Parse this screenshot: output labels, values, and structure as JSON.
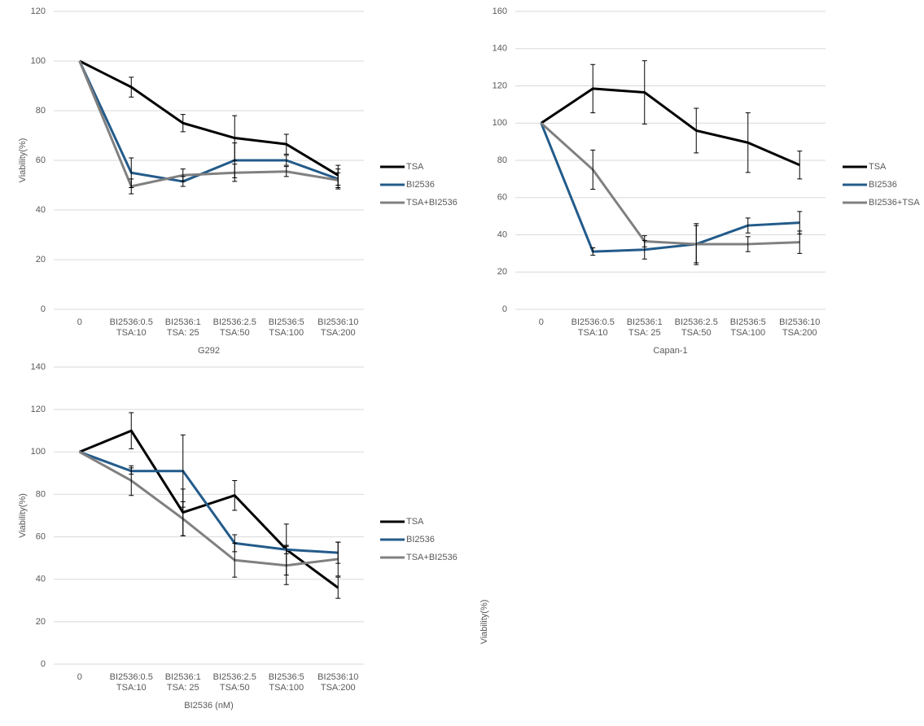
{
  "chart_data": [
    {
      "type": "line",
      "x_label": "G292",
      "y_label": "Viability(%)",
      "grid": true,
      "legend": "right",
      "categories": [
        [
          "0"
        ],
        [
          "BI2536:0.5",
          "TSA:10"
        ],
        [
          "BI2536:1",
          "TSA: 25"
        ],
        [
          "BI2536:2.5",
          "TSA:50"
        ],
        [
          "BI2536:5",
          "TSA:100"
        ],
        [
          "BI2536:10",
          "TSA:200"
        ]
      ],
      "ylim": [
        0,
        120
      ],
      "yticks": [
        0,
        20,
        40,
        60,
        80,
        100,
        120
      ],
      "series": [
        {
          "name": "TSA",
          "color": "#000000",
          "values": [
            100,
            89.5,
            75,
            69,
            66.5,
            54
          ],
          "errors": [
            null,
            4,
            3.5,
            9,
            4,
            4
          ]
        },
        {
          "name": "BI2536",
          "color": "#235b8a",
          "values": [
            100,
            55,
            51.5,
            60,
            60,
            52.5
          ],
          "errors": [
            null,
            6,
            2,
            7,
            2,
            4
          ]
        },
        {
          "name": "TSA+BI2536",
          "color": "#808080",
          "values": [
            100,
            49.5,
            54,
            55,
            55.5,
            52
          ],
          "errors": [
            null,
            3,
            2.5,
            3.5,
            2,
            3
          ]
        }
      ]
    },
    {
      "type": "line",
      "x_label": "Capan-1",
      "y_label": "Viability(%)",
      "grid": true,
      "legend": "right",
      "categories": [
        [
          "0"
        ],
        [
          "BI2536:0.5",
          "TSA:10"
        ],
        [
          "BI2536:1",
          "TSA: 25"
        ],
        [
          "BI2536:2.5",
          "TSA:50"
        ],
        [
          "BI2536:5",
          "TSA:100"
        ],
        [
          "BI2536:10",
          "TSA:200"
        ]
      ],
      "ylim": [
        0,
        160
      ],
      "yticks": [
        0,
        20,
        40,
        60,
        80,
        100,
        120,
        140,
        160
      ],
      "series": [
        {
          "name": "TSA",
          "color": "#000000",
          "values": [
            100,
            118.5,
            116.5,
            96,
            89.5,
            77.5
          ],
          "errors": [
            null,
            13,
            17,
            12,
            16,
            7.5
          ]
        },
        {
          "name": "BI2536",
          "color": "#235b8a",
          "values": [
            100,
            31,
            32,
            35,
            45,
            46.5
          ],
          "errors": [
            null,
            2,
            5,
            10,
            4,
            6
          ]
        },
        {
          "name": "BI2536+TSA",
          "color": "#808080",
          "values": [
            100,
            75,
            36.5,
            35,
            35,
            36
          ],
          "errors": [
            null,
            10.5,
            3,
            11,
            4,
            6
          ]
        }
      ]
    },
    {
      "type": "line",
      "x_label": "BI2536 (nM)",
      "y_label": "Viability(%)",
      "grid": true,
      "legend": "right",
      "categories": [
        [
          "0"
        ],
        [
          "BI2536:0.5",
          "TSA:10"
        ],
        [
          "BI2536:1",
          "TSA: 25"
        ],
        [
          "BI2536:2.5",
          "TSA:50"
        ],
        [
          "BI2536:5",
          "TSA:100"
        ],
        [
          "BI2536:10",
          "TSA:200"
        ]
      ],
      "ylim": [
        0,
        140
      ],
      "yticks": [
        0,
        20,
        40,
        60,
        80,
        100,
        120,
        140
      ],
      "series": [
        {
          "name": "TSA",
          "color": "#000000",
          "values": [
            100,
            110,
            71.5,
            79.5,
            54,
            36
          ],
          "errors": [
            null,
            8.5,
            11,
            7,
            12,
            5
          ]
        },
        {
          "name": "BI2536",
          "color": "#235b8a",
          "values": [
            100,
            91,
            91,
            57,
            54,
            52.5
          ],
          "errors": [
            null,
            1.5,
            17,
            4,
            2,
            5
          ]
        },
        {
          "name": "TSA+BI2536",
          "color": "#808080",
          "values": [
            100,
            86.5,
            68.5,
            49,
            46.5,
            49.5
          ],
          "errors": [
            null,
            7,
            8,
            8,
            9,
            8
          ]
        }
      ]
    }
  ]
}
